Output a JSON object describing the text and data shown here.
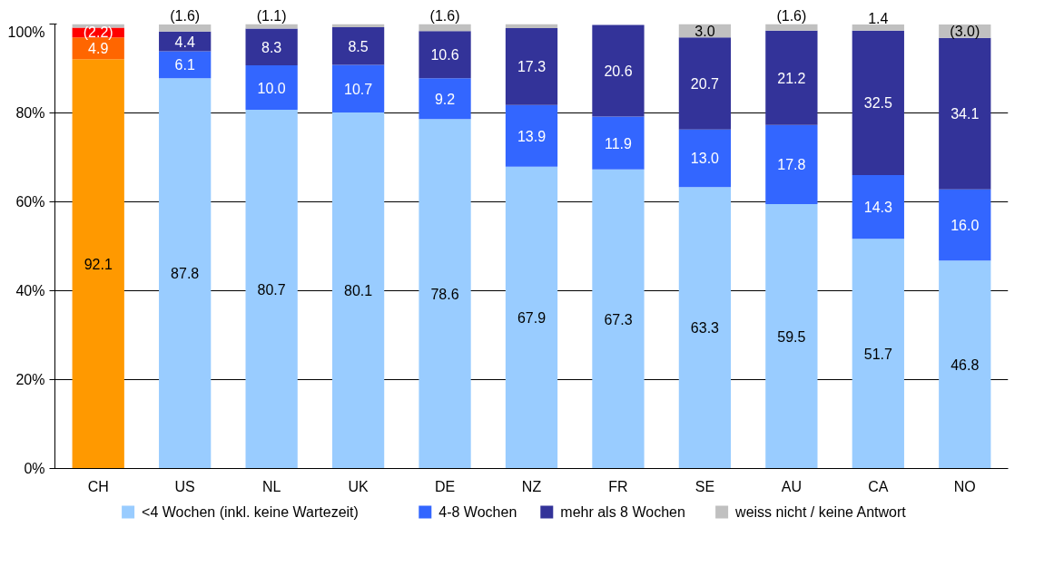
{
  "chart_data": {
    "type": "bar",
    "stacked": true,
    "categories": [
      "CH",
      "US",
      "NL",
      "UK",
      "DE",
      "NZ",
      "FR",
      "SE",
      "AU",
      "CA",
      "NO"
    ],
    "series": [
      {
        "name": "<4 Wochen (inkl. keine Wartezeit)",
        "color": "#99ccff",
        "colors": [
          "#ff9900",
          "#99ccff",
          "#99ccff",
          "#99ccff",
          "#99ccff",
          "#99ccff",
          "#99ccff",
          "#99ccff",
          "#99ccff",
          "#99ccff",
          "#99ccff"
        ],
        "values": [
          92.1,
          87.8,
          80.7,
          80.1,
          78.6,
          67.9,
          67.3,
          63.3,
          59.5,
          51.7,
          46.8
        ],
        "value_labels": [
          "92.1",
          "87.8",
          "80.7",
          "80.1",
          "78.6",
          "67.9",
          "67.3",
          "63.3",
          "59.5",
          "51.7",
          "46.8"
        ]
      },
      {
        "name": "4-8 Wochen",
        "color": "#3366ff",
        "colors": [
          "#ff6600",
          "#3366ff",
          "#3366ff",
          "#3366ff",
          "#3366ff",
          "#3366ff",
          "#3366ff",
          "#3366ff",
          "#3366ff",
          "#3366ff",
          "#3366ff"
        ],
        "values": [
          4.9,
          6.1,
          10.0,
          10.7,
          9.2,
          13.9,
          11.9,
          13.0,
          17.8,
          14.3,
          16.0
        ],
        "value_labels": [
          "4.9",
          "6.1",
          "10.0",
          "10.7",
          "9.2",
          "13.9",
          "11.9",
          "13.0",
          "17.8",
          "14.3",
          "16.0"
        ]
      },
      {
        "name": "mehr als 8 Wochen",
        "color": "#333399",
        "colors": [
          "#ff0000",
          "#333399",
          "#333399",
          "#333399",
          "#333399",
          "#333399",
          "#333399",
          "#333399",
          "#333399",
          "#333399",
          "#333399"
        ],
        "values": [
          2.2,
          4.4,
          8.3,
          8.5,
          10.6,
          17.3,
          20.6,
          20.7,
          21.2,
          32.5,
          34.1
        ],
        "value_labels": [
          "(2.2)",
          "4.4",
          "8.3",
          "8.5",
          "10.6",
          "17.3",
          "20.6",
          "20.7",
          "21.2",
          "32.5",
          "34.1"
        ]
      },
      {
        "name": "weiss nicht / keine Antwort",
        "color": "#c0c0c0",
        "colors": [
          "#c0c0c0",
          "#c0c0c0",
          "#c0c0c0",
          "#c0c0c0",
          "#c0c0c0",
          "#c0c0c0",
          "#c0c0c0",
          "#c0c0c0",
          "#c0c0c0",
          "#c0c0c0",
          "#c0c0c0"
        ],
        "values": [
          0.8,
          1.6,
          1.1,
          0.7,
          1.6,
          0.9,
          null,
          3.0,
          1.6,
          1.4,
          3.0
        ],
        "value_labels": [
          null,
          "(1.6)",
          "(1.1)",
          null,
          "(1.6)",
          null,
          null,
          "3.0",
          "(1.6)",
          "1.4",
          "(3.0)"
        ]
      }
    ],
    "ylim": [
      0,
      100
    ],
    "yticks": [
      {
        "value": 0,
        "label": "0%"
      },
      {
        "value": 20,
        "label": "20%"
      },
      {
        "value": 40,
        "label": "40%"
      },
      {
        "value": 60,
        "label": "60%"
      },
      {
        "value": 80,
        "label": "80%"
      },
      {
        "value": 100,
        "label": "100%"
      }
    ],
    "grid": "y",
    "legend": "bottom"
  }
}
